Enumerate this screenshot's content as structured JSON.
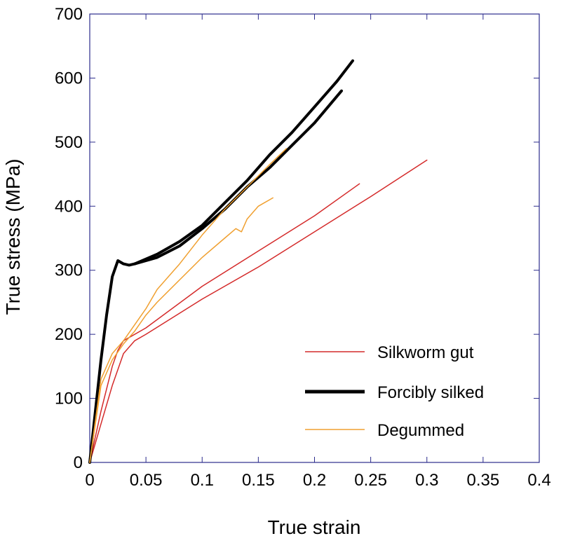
{
  "chart_data": {
    "type": "line",
    "xlabel": "True strain",
    "ylabel": "True stress (MPa)",
    "xlim": [
      0,
      0.4
    ],
    "ylim": [
      0,
      700
    ],
    "xticks": [
      "0",
      "0.05",
      "0.1",
      "0.15",
      "0.2",
      "0.25",
      "0.3",
      "0.35",
      "0.4"
    ],
    "yticks": [
      "0",
      "100",
      "200",
      "300",
      "400",
      "500",
      "600",
      "700"
    ],
    "grid": false,
    "legend_position": "bottom-right",
    "colors": {
      "axis": "#2b2b8c",
      "silkworm": "#d42a2a",
      "forcibly": "#000000",
      "degummed": "#f0a030"
    },
    "series": [
      {
        "name": "Silkworm gut",
        "color": "#d42a2a",
        "stroke_width": 1.5,
        "x": [
          0,
          0.01,
          0.02,
          0.025,
          0.03,
          0.05,
          0.1,
          0.15,
          0.2,
          0.24
        ],
        "y": [
          0,
          80,
          150,
          175,
          190,
          210,
          275,
          330,
          385,
          435
        ]
      },
      {
        "name": "",
        "color": "#d42a2a",
        "stroke_width": 1.5,
        "x": [
          0,
          0.01,
          0.02,
          0.03,
          0.04,
          0.05,
          0.1,
          0.15,
          0.2,
          0.25,
          0.3
        ],
        "y": [
          0,
          60,
          120,
          170,
          190,
          200,
          255,
          305,
          360,
          415,
          472
        ]
      },
      {
        "name": "Forcibly silked",
        "color": "#000000",
        "stroke_width": 4,
        "x": [
          0,
          0.005,
          0.01,
          0.015,
          0.02,
          0.025,
          0.03,
          0.035,
          0.04,
          0.06,
          0.08,
          0.1,
          0.12,
          0.14,
          0.16,
          0.18,
          0.2,
          0.22,
          0.234
        ],
        "y": [
          0,
          80,
          160,
          230,
          290,
          315,
          310,
          308,
          310,
          325,
          345,
          370,
          405,
          440,
          480,
          515,
          555,
          595,
          627
        ]
      },
      {
        "name": "",
        "color": "#000000",
        "stroke_width": 4,
        "x": [
          0.04,
          0.06,
          0.08,
          0.1,
          0.12,
          0.14,
          0.16,
          0.18,
          0.2,
          0.224
        ],
        "y": [
          310,
          320,
          338,
          365,
          395,
          430,
          460,
          495,
          530,
          580
        ]
      },
      {
        "name": "Degummed",
        "color": "#f0a030",
        "stroke_width": 1.5,
        "x": [
          0,
          0.01,
          0.02,
          0.03,
          0.04,
          0.05,
          0.06,
          0.08,
          0.1,
          0.12,
          0.14,
          0.16,
          0.175
        ],
        "y": [
          0,
          130,
          170,
          190,
          215,
          240,
          270,
          310,
          355,
          395,
          430,
          465,
          490
        ]
      },
      {
        "name": "",
        "color": "#f0a030",
        "stroke_width": 1.5,
        "x": [
          0,
          0.01,
          0.02,
          0.03,
          0.04,
          0.05,
          0.06,
          0.08,
          0.1,
          0.12,
          0.13,
          0.135,
          0.14,
          0.15,
          0.163
        ],
        "y": [
          0,
          120,
          160,
          185,
          205,
          230,
          250,
          285,
          320,
          350,
          365,
          360,
          380,
          400,
          413
        ]
      }
    ]
  }
}
